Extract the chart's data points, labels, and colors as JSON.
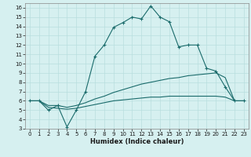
{
  "title": "",
  "xlabel": "Humidex (Indice chaleur)",
  "background_color": "#d6f0f0",
  "line_color": "#1a6b6b",
  "grid_color": "#b8dede",
  "xlim": [
    -0.5,
    23.5
  ],
  "ylim": [
    3,
    16.5
  ],
  "xticks": [
    0,
    1,
    2,
    3,
    4,
    5,
    6,
    7,
    8,
    9,
    10,
    11,
    12,
    13,
    14,
    15,
    16,
    17,
    18,
    19,
    20,
    21,
    22,
    23
  ],
  "yticks": [
    3,
    4,
    5,
    6,
    7,
    8,
    9,
    10,
    11,
    12,
    13,
    14,
    15,
    16
  ],
  "main_curve": [
    6.0,
    6.0,
    5.0,
    5.5,
    3.2,
    5.0,
    7.0,
    10.8,
    12.0,
    13.9,
    14.4,
    15.0,
    14.8,
    16.2,
    15.0,
    14.5,
    11.8,
    12.0,
    12.0,
    9.5,
    9.2,
    7.5,
    6.0,
    6.0
  ],
  "line2": [
    6.0,
    6.0,
    5.5,
    5.5,
    5.3,
    5.5,
    5.8,
    6.2,
    6.5,
    6.9,
    7.2,
    7.5,
    7.8,
    8.0,
    8.2,
    8.4,
    8.5,
    8.7,
    8.8,
    8.9,
    9.0,
    8.5,
    6.0,
    6.0
  ],
  "line3": [
    6.0,
    6.0,
    5.3,
    5.2,
    5.1,
    5.2,
    5.4,
    5.6,
    5.8,
    6.0,
    6.1,
    6.2,
    6.3,
    6.4,
    6.4,
    6.5,
    6.5,
    6.5,
    6.5,
    6.5,
    6.5,
    6.4,
    6.0,
    6.0
  ],
  "x": [
    0,
    1,
    2,
    3,
    4,
    5,
    6,
    7,
    8,
    9,
    10,
    11,
    12,
    13,
    14,
    15,
    16,
    17,
    18,
    19,
    20,
    21,
    22,
    23
  ],
  "xlabel_fontsize": 6.0,
  "tick_fontsize": 5.0
}
